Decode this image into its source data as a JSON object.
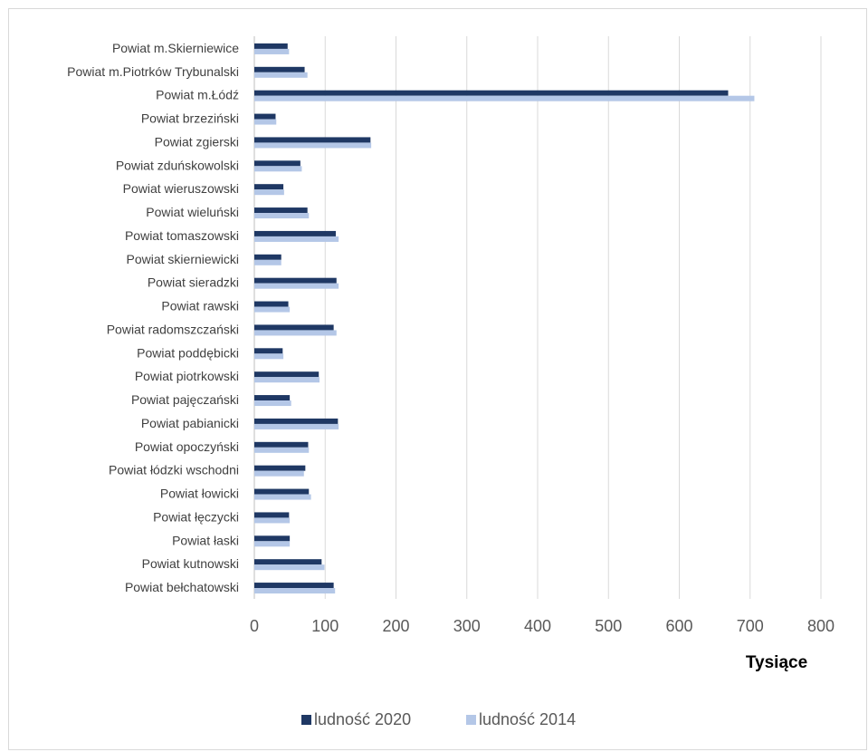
{
  "chart_data": {
    "type": "bar",
    "orientation": "horizontal",
    "categories": [
      "Powiat m.Skierniewice",
      "Powiat m.Piotrków Trybunalski",
      "Powiat m.Łódź",
      "Powiat brzeziński",
      "Powiat zgierski",
      "Powiat zduńskowolski",
      "Powiat wieruszowski",
      "Powiat wieluński",
      "Powiat tomaszowski",
      "Powiat skierniewicki",
      "Powiat sieradzki",
      "Powiat rawski",
      "Powiat radomszczański",
      "Powiat poddębicki",
      "Powiat piotrkowski",
      "Powiat pajęczański",
      "Powiat pabianicki",
      "Powiat opoczyński",
      "Powiat łódzki wschodni",
      "Powiat łowicki",
      "Powiat łęczycki",
      "Powiat łaski",
      "Powiat kutnowski",
      "Powiat bełchatowski"
    ],
    "series": [
      {
        "name": "ludność 2020",
        "color": "#1f3864",
        "values": [
          47,
          71,
          669,
          30,
          164,
          65,
          41,
          75,
          115,
          38,
          116,
          48,
          112,
          40,
          91,
          50,
          118,
          76,
          72,
          77,
          49,
          50,
          95,
          112
        ]
      },
      {
        "name": "ludność 2014",
        "color": "#b4c7e7",
        "values": [
          49,
          75,
          706,
          31,
          165,
          67,
          42,
          77,
          119,
          38,
          119,
          50,
          116,
          41,
          92,
          52,
          119,
          77,
          70,
          80,
          50,
          50,
          99,
          114
        ]
      }
    ],
    "xlim": [
      0,
      800
    ],
    "xticks": [
      "0",
      "100",
      "200",
      "300",
      "400",
      "500",
      "600",
      "700",
      "800"
    ],
    "xlabel": "Tysiące",
    "grid": "vertical",
    "legend": "bottom"
  }
}
